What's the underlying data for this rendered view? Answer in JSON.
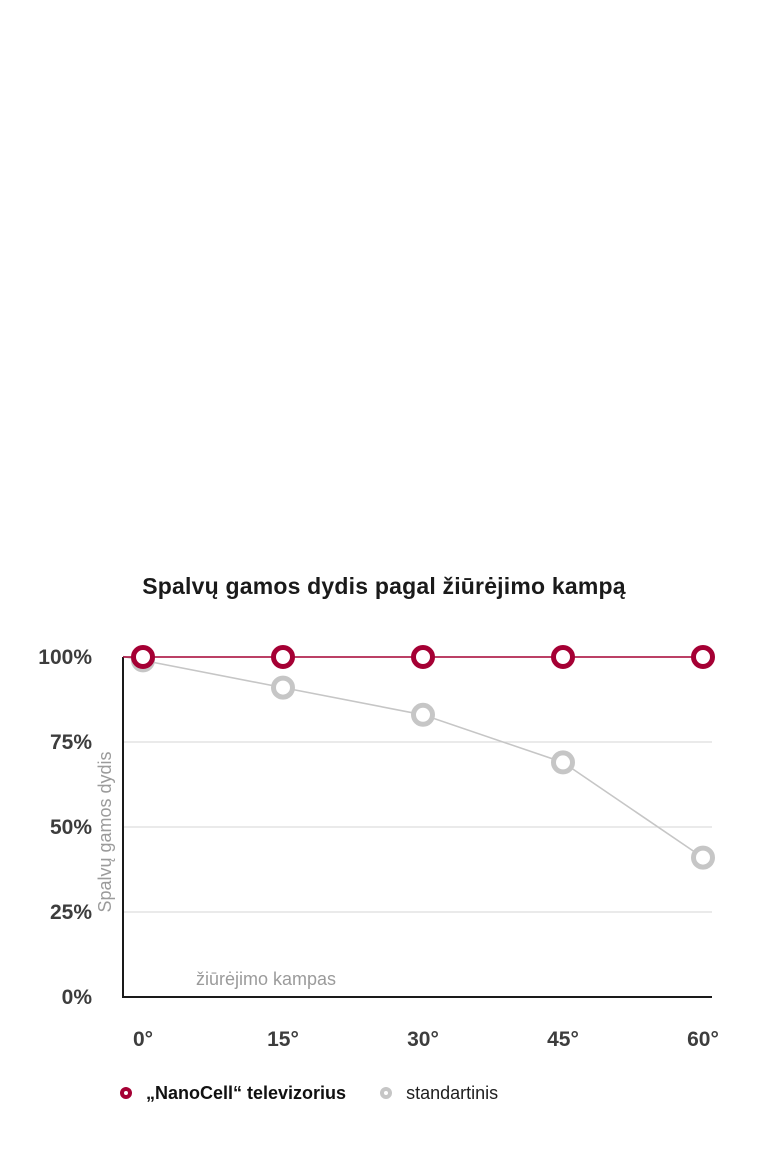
{
  "page": {
    "background": "#ffffff"
  },
  "chart_data": {
    "type": "line",
    "title": "Spalvų gamos dydis pagal žiūrėjimo kampą",
    "categories": [
      "0°",
      "15°",
      "30°",
      "45°",
      "60°"
    ],
    "series": [
      {
        "name": "„NanoCell“ televizorius",
        "values": [
          100,
          100,
          100,
          100,
          100
        ],
        "color": "#a50034",
        "bold": true
      },
      {
        "name": "standartinis",
        "values": [
          99,
          91,
          83,
          69,
          41
        ],
        "color": "#c6c6c6",
        "bold": false
      }
    ],
    "xlabel": "žiūrėjimo kampas",
    "ylabel": "Spalvų gamos dydis",
    "ylim": [
      0,
      100
    ],
    "yticks": [
      0,
      25,
      50,
      75,
      100
    ],
    "ytick_labels": [
      "0%",
      "25%",
      "50%",
      "75%",
      "100%"
    ],
    "grid_values": [
      25,
      50,
      75
    ],
    "grid_on": true,
    "legend_position": "bottom"
  },
  "colors": {
    "axis": "#1a1a1a",
    "gridline": "#dedede",
    "tick_text": "#3d3d3d",
    "axis_label_text": "#9b9b9b",
    "title_text": "#1a1a1a"
  }
}
